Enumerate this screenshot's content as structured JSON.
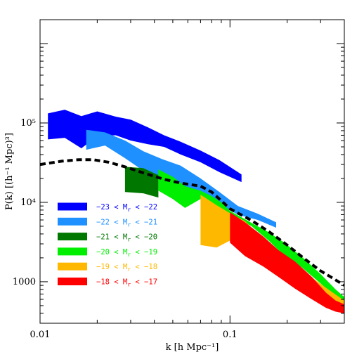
{
  "chart_data": {
    "type": "area",
    "xlabel": "k [h Mpc⁻¹]",
    "ylabel": "P(k) [(h⁻¹ Mpc)³]",
    "xscale": "log",
    "yscale": "log",
    "xlim": [
      0.01,
      0.4
    ],
    "ylim": [
      300,
      2000000
    ],
    "x_ticks": [
      {
        "value": 0.01,
        "label": "0.01"
      },
      {
        "value": 0.1,
        "label": "0.1"
      }
    ],
    "y_ticks": [
      {
        "value": 1000,
        "label": "1000"
      },
      {
        "value": 10000,
        "label": "10⁴"
      },
      {
        "value": 100000,
        "label": "10⁵"
      }
    ],
    "legend_position": "lower-left",
    "series": [
      {
        "name": "−23 < Mᵣ < −22",
        "color": "#0000ff",
        "x": [
          0.011,
          0.0135,
          0.0165,
          0.02,
          0.025,
          0.03,
          0.037,
          0.045,
          0.055,
          0.07,
          0.088,
          0.115
        ],
        "upper": [
          132000,
          147000,
          122000,
          140000,
          120000,
          110000,
          88000,
          70000,
          58000,
          45000,
          34000,
          22500
        ],
        "lower": [
          62000,
          65000,
          48000,
          68000,
          70000,
          60000,
          54000,
          50000,
          40000,
          32000,
          24000,
          18000
        ]
      },
      {
        "name": "−22 < Mᵣ < −21",
        "color": "#1e90ff",
        "x": [
          0.0175,
          0.022,
          0.028,
          0.035,
          0.044,
          0.055,
          0.07,
          0.088,
          0.11,
          0.14,
          0.175
        ],
        "upper": [
          82000,
          76000,
          60000,
          44000,
          35000,
          29000,
          20000,
          13500,
          9000,
          7200,
          5600
        ],
        "lower": [
          46000,
          52000,
          36000,
          25000,
          20000,
          16000,
          12500,
          9500,
          7000,
          6000,
          4800
        ]
      },
      {
        "name": "−21 < Mᵣ < −20",
        "color": "#007800",
        "x": [
          0.028,
          0.035,
          0.042
        ],
        "upper": [
          28000,
          27000,
          22000
        ],
        "lower": [
          13500,
          13000,
          11500
        ]
      },
      {
        "name": "−20 < Mᵣ < −19",
        "color": "#00ee00",
        "x": [
          0.042,
          0.05,
          0.058,
          0.07,
          0.08,
          0.09,
          0.1,
          0.13,
          0.16,
          0.19,
          0.24,
          0.3,
          0.36,
          0.4
        ],
        "upper": [
          26000,
          21000,
          16000,
          14000,
          12000,
          10000,
          7800,
          5500,
          4200,
          3200,
          2050,
          1250,
          800,
          640
        ],
        "lower": [
          14000,
          11000,
          8500,
          11000,
          9800,
          8400,
          7000,
          5000,
          3300,
          2200,
          1500,
          950,
          650,
          540
        ]
      },
      {
        "name": "−19 < Mᵣ < −18",
        "color": "#ffb800",
        "x": [
          0.07,
          0.085,
          0.1,
          0.12,
          0.15,
          0.18,
          0.22,
          0.27,
          0.32,
          0.4
        ],
        "upper": [
          12500,
          9200,
          7300,
          5800,
          3400,
          2500,
          1600,
          1130,
          840,
          580
        ],
        "lower": [
          2900,
          2700,
          3300,
          3000,
          2500,
          1800,
          1250,
          860,
          640,
          500
        ]
      },
      {
        "name": "−18 < Mᵣ < −17",
        "color": "#ff0000",
        "x": [
          0.1,
          0.12,
          0.15,
          0.18,
          0.22,
          0.27,
          0.32,
          0.36,
          0.4
        ],
        "upper": [
          7500,
          5600,
          3700,
          2500,
          1800,
          1150,
          730,
          580,
          520
        ],
        "lower": [
          3100,
          2100,
          1550,
          1150,
          820,
          600,
          470,
          420,
          400
        ]
      },
      {
        "name": "model",
        "style": "dashed",
        "color": "#000000",
        "x": [
          0.01,
          0.013,
          0.016,
          0.019,
          0.023,
          0.028,
          0.035,
          0.045,
          0.055,
          0.07,
          0.08,
          0.09,
          0.1,
          0.13,
          0.16,
          0.2,
          0.25,
          0.3,
          0.35,
          0.4
        ],
        "y": [
          30000,
          33000,
          34500,
          34500,
          32000,
          28000,
          23500,
          19500,
          17500,
          16000,
          13500,
          10500,
          8300,
          5900,
          4300,
          2900,
          1900,
          1370,
          1100,
          900
        ]
      }
    ]
  },
  "legend": [
    {
      "label": "−23 < M",
      "sub": "r",
      "rest": " < −22",
      "color": "#0000ff"
    },
    {
      "label": "−22 < M",
      "sub": "r",
      "rest": " < −21",
      "color": "#1e90ff"
    },
    {
      "label": "−21 < M",
      "sub": "r",
      "rest": " < −20",
      "color": "#007800"
    },
    {
      "label": "−20 < M",
      "sub": "r",
      "rest": " < −19",
      "color": "#00ee00"
    },
    {
      "label": "−19 < M",
      "sub": "r",
      "rest": " < −18",
      "color": "#ffb800"
    },
    {
      "label": "−18 < M",
      "sub": "r",
      "rest": " < −17",
      "color": "#ff0000"
    }
  ]
}
